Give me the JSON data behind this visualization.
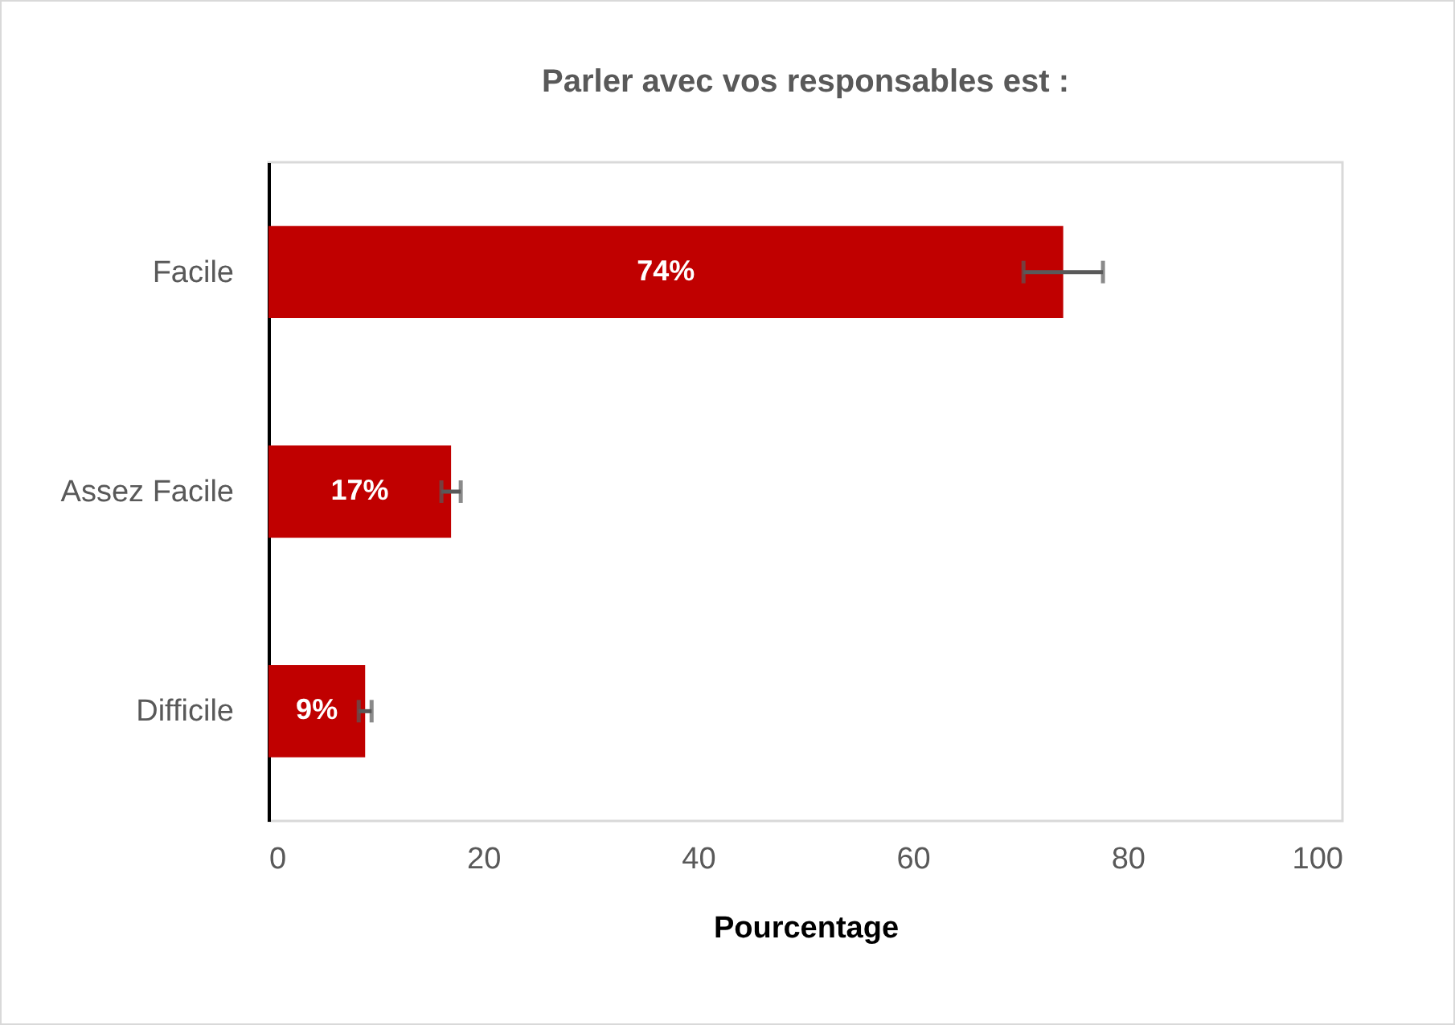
{
  "chart_data": {
    "type": "bar",
    "orientation": "horizontal",
    "title": "Parler avec vos responsables est :",
    "xlabel": "Pourcentage",
    "categories": [
      "Facile",
      "Assez Facile",
      "Difficile"
    ],
    "values": [
      74,
      17,
      9
    ],
    "errors": [
      3.7,
      0.9,
      0.6
    ],
    "value_labels": [
      "74%",
      "17%",
      "9%"
    ],
    "color": "#c00000",
    "xlim": [
      0,
      100
    ],
    "xticks": [
      0,
      20,
      40,
      60,
      80,
      100
    ],
    "grid": false
  }
}
